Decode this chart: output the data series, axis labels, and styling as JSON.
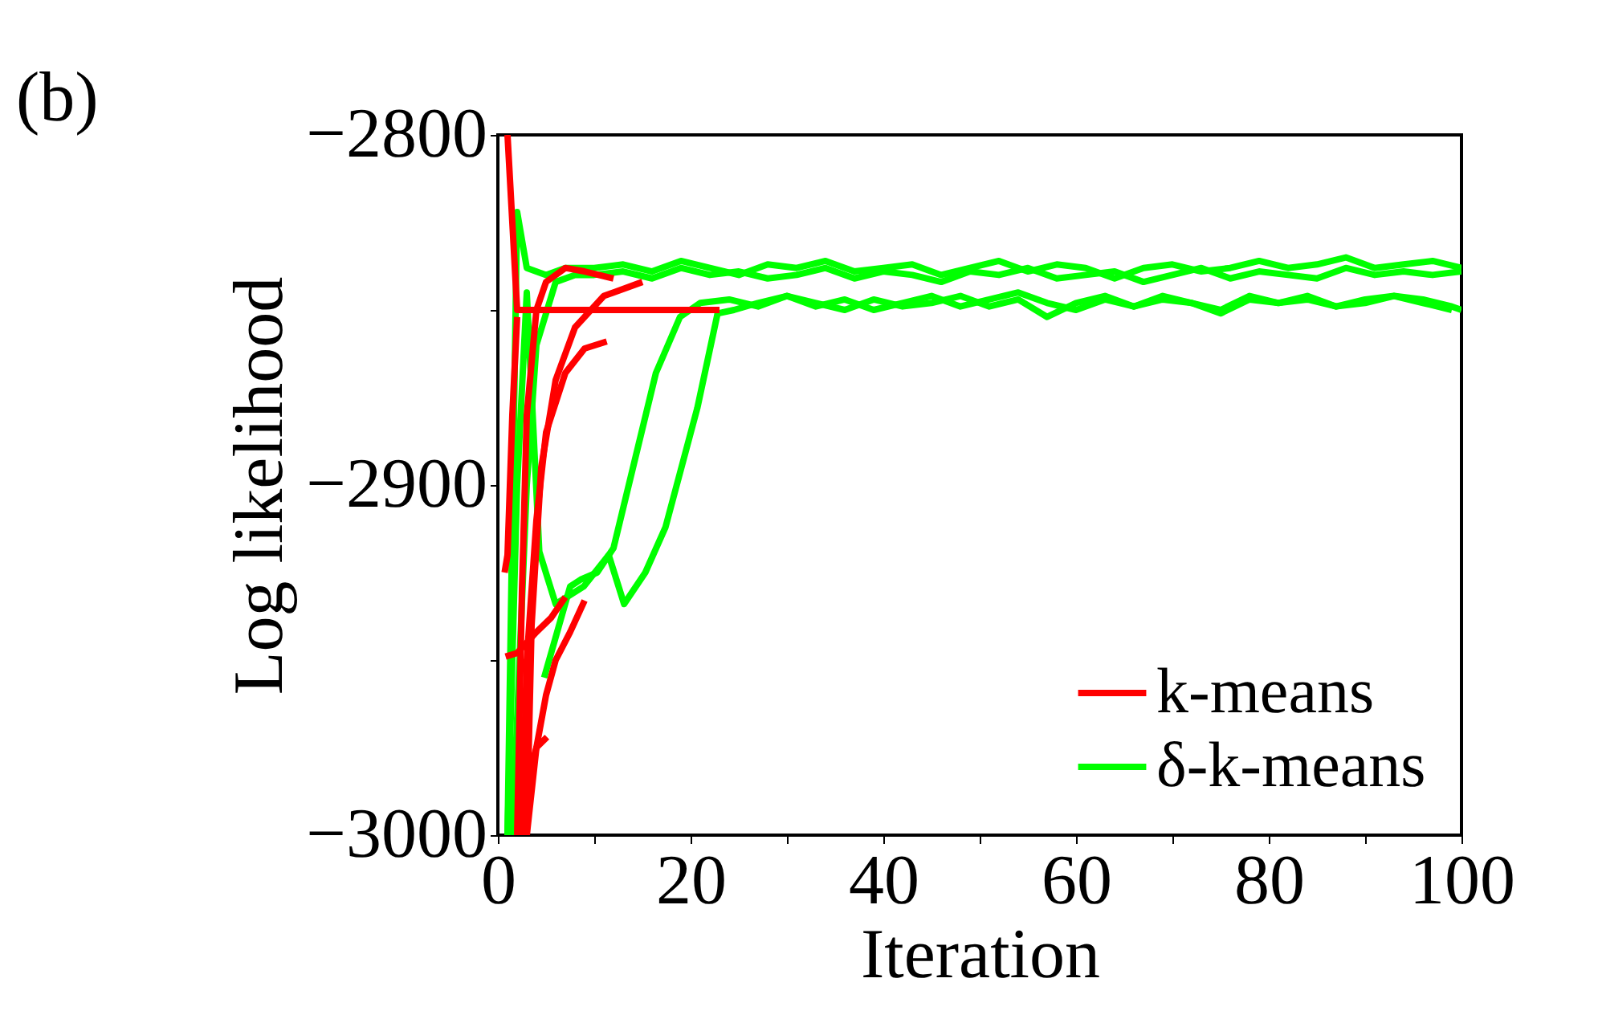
{
  "chart_data": {
    "type": "line",
    "xlabel": "Iteration",
    "ylabel": "Log likelihood",
    "annotations": [
      "(b)"
    ],
    "xlim": [
      0,
      100
    ],
    "xticks": [
      0,
      {
        "value": 10,
        "label": null
      },
      20,
      {
        "value": 30,
        "label": null
      },
      40,
      {
        "value": 50,
        "label": null
      },
      60,
      {
        "value": 70,
        "label": null
      },
      80,
      {
        "value": 90,
        "label": null
      },
      100
    ],
    "ylim": [
      -3000,
      -2800
    ],
    "yticks": [
      -3000,
      {
        "value": -2950,
        "label": null
      },
      -2900,
      {
        "value": -2850,
        "label": null
      },
      -2800
    ],
    "grid": false,
    "legend": "bottom right",
    "marker": "none",
    "line_style": "solid",
    "series": [
      {
        "name": "k-means",
        "color": "#ff0000",
        "x": [
          1,
          2,
          23
        ],
        "values": [
          -2800,
          -2850,
          -2850
        ]
      },
      {
        "color": "#ff0000",
        "x": [
          2,
          2.5,
          3,
          4,
          5,
          7,
          9,
          12
        ],
        "values": [
          -3000,
          -2930,
          -2880,
          -2850,
          -2842,
          -2838,
          -2839,
          -2841
        ]
      },
      {
        "color": "#ff0000",
        "x": [
          3,
          3.5,
          4.5,
          6,
          8,
          11,
          15
        ],
        "values": [
          -3000,
          -2940,
          -2895,
          -2870,
          -2855,
          -2846,
          -2842
        ]
      },
      {
        "color": "#ff0000",
        "x": [
          2.5,
          3,
          4,
          5,
          7,
          9,
          11.3
        ],
        "values": [
          -3000,
          -2950,
          -2910,
          -2885,
          -2868,
          -2861,
          -2859
        ]
      },
      {
        "color": "#ff0000",
        "x": [
          0.8,
          2,
          4,
          5.5,
          7
        ],
        "values": [
          -2949,
          -2948,
          -2942,
          -2938,
          -2932
        ]
      },
      {
        "color": "#ff0000",
        "x": [
          3,
          4,
          5,
          6,
          7.5,
          9
        ],
        "values": [
          -3000,
          -2975,
          -2960,
          -2950,
          -2942,
          -2933
        ]
      },
      {
        "color": "#ff0000",
        "x": [
          0.7,
          1,
          1.5,
          2
        ],
        "values": [
          -2925,
          -2920,
          -2880,
          -2852
        ]
      },
      {
        "color": "#ff0000",
        "x": [
          2.5,
          3,
          4,
          5.1
        ],
        "values": [
          -3000,
          -2985,
          -2975,
          -2972
        ]
      },
      {
        "name": "δ-k-means",
        "color": "#00ff00",
        "x": [
          1,
          2,
          3,
          5,
          7,
          10,
          13,
          16,
          19,
          22,
          25,
          28,
          31,
          34,
          37,
          40,
          43,
          46,
          49,
          52,
          55,
          58,
          61,
          64,
          67,
          70,
          73,
          76,
          79,
          82,
          85,
          88,
          91,
          94,
          97,
          100
        ],
        "values": [
          -3000,
          -2822,
          -2838,
          -2840,
          -2838,
          -2838,
          -2837,
          -2839,
          -2836,
          -2838,
          -2840,
          -2837,
          -2838,
          -2836,
          -2839,
          -2838,
          -2837,
          -2840,
          -2838,
          -2836,
          -2839,
          -2837,
          -2838,
          -2841,
          -2838,
          -2837,
          -2839,
          -2838,
          -2836,
          -2838,
          -2837,
          -2835,
          -2838,
          -2837,
          -2836,
          -2838
        ]
      },
      {
        "color": "#00ff00",
        "x": [
          1.5,
          3,
          4,
          6,
          8,
          10,
          13,
          16,
          19,
          22,
          25,
          28,
          31,
          34,
          37,
          40,
          43,
          46,
          49,
          52,
          55,
          58,
          61,
          64,
          67,
          70,
          73,
          76,
          79,
          82,
          85,
          88,
          91,
          94,
          97,
          100
        ],
        "values": [
          -3000,
          -2900,
          -2860,
          -2842,
          -2840,
          -2840,
          -2839,
          -2841,
          -2838,
          -2840,
          -2839,
          -2841,
          -2840,
          -2838,
          -2841,
          -2839,
          -2840,
          -2842,
          -2839,
          -2840,
          -2838,
          -2841,
          -2840,
          -2839,
          -2842,
          -2840,
          -2838,
          -2841,
          -2839,
          -2840,
          -2841,
          -2838,
          -2840,
          -2839,
          -2840,
          -2839
        ]
      },
      {
        "color": "#00ff00",
        "x": [
          1,
          2,
          3,
          4.3,
          6,
          8.9,
          11.5,
          13.1,
          15.3,
          17.4,
          20.7,
          22.8,
          24.5,
          27,
          30,
          33,
          36,
          39,
          42,
          45,
          48,
          51,
          54,
          57,
          60,
          63,
          66,
          69,
          72,
          75,
          78,
          81,
          84,
          87,
          90,
          93,
          96,
          99
        ],
        "values": [
          -3000,
          -2900,
          -2845,
          -2919,
          -2934,
          -2929,
          -2920,
          -2934,
          -2925,
          -2912,
          -2878,
          -2851,
          -2850,
          -2848,
          -2846,
          -2849,
          -2847,
          -2850,
          -2848,
          -2846,
          -2849,
          -2847,
          -2845,
          -2848,
          -2850,
          -2847,
          -2849,
          -2846,
          -2848,
          -2851,
          -2847,
          -2848,
          -2846,
          -2849,
          -2847,
          -2846,
          -2848,
          -2850
        ]
      },
      {
        "color": "#00ff00",
        "x": [
          4.8,
          7.5,
          8.6,
          10.3,
          12,
          14.2,
          16.4,
          18.9,
          21,
          24,
          27,
          30,
          33,
          36,
          39,
          42,
          45,
          48,
          51,
          54,
          57,
          60,
          63,
          66,
          69,
          72,
          75,
          78,
          81,
          84,
          87,
          90,
          93,
          96,
          99,
          100
        ],
        "values": [
          -2955,
          -2929,
          -2927,
          -2925,
          -2918,
          -2893,
          -2868,
          -2852,
          -2848,
          -2847,
          -2849,
          -2846,
          -2848,
          -2850,
          -2847,
          -2849,
          -2848,
          -2846,
          -2849,
          -2847,
          -2852,
          -2848,
          -2846,
          -2849,
          -2847,
          -2848,
          -2850,
          -2846,
          -2848,
          -2847,
          -2849,
          -2848,
          -2846,
          -2847,
          -2849,
          -2850
        ]
      }
    ]
  }
}
